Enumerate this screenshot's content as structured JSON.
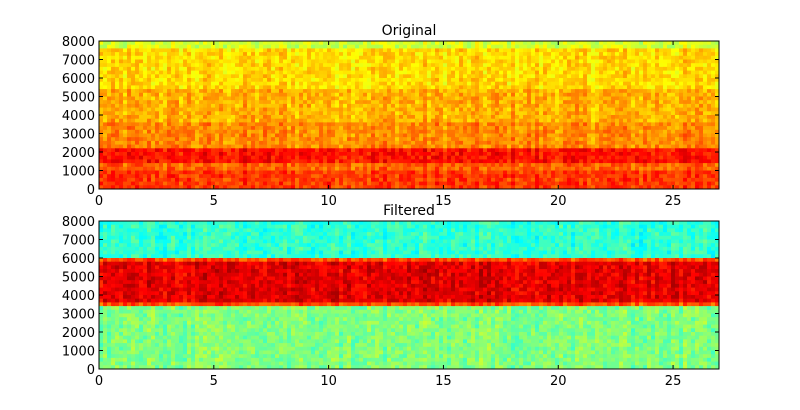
{
  "chart_data": [
    {
      "type": "heatmap",
      "title": "Original",
      "xlabel": "",
      "ylabel": "",
      "xlim": [
        0,
        27
      ],
      "ylim": [
        0,
        8000
      ],
      "xticks": [
        0,
        5,
        10,
        15,
        20,
        25
      ],
      "yticks": [
        0,
        1000,
        2000,
        3000,
        4000,
        5000,
        6000,
        7000,
        8000
      ],
      "colormap": "jet",
      "grid": false,
      "bands": [
        {
          "from": 0,
          "to": 1100,
          "level": 0.82
        },
        {
          "from": 1100,
          "to": 1500,
          "level": 0.78
        },
        {
          "from": 1500,
          "to": 2300,
          "level": 0.86
        },
        {
          "from": 2300,
          "to": 3600,
          "level": 0.74
        },
        {
          "from": 3600,
          "to": 5500,
          "level": 0.7
        },
        {
          "from": 5500,
          "to": 7700,
          "level": 0.66
        },
        {
          "from": 7700,
          "to": 8000,
          "level": 0.58
        }
      ]
    },
    {
      "type": "heatmap",
      "title": "Filtered",
      "xlabel": "",
      "ylabel": "",
      "xlim": [
        0,
        27
      ],
      "ylim": [
        0,
        8000
      ],
      "xticks": [
        0,
        5,
        10,
        15,
        20,
        25
      ],
      "yticks": [
        0,
        1000,
        2000,
        3000,
        4000,
        5000,
        6000,
        7000,
        8000
      ],
      "colormap": "jet",
      "grid": false,
      "bands": [
        {
          "from": 0,
          "to": 3500,
          "level": 0.5
        },
        {
          "from": 3500,
          "to": 3700,
          "level": 0.8
        },
        {
          "from": 3700,
          "to": 5850,
          "level": 0.9
        },
        {
          "from": 5850,
          "to": 6000,
          "level": 0.8
        },
        {
          "from": 6000,
          "to": 8000,
          "level": 0.42
        }
      ]
    }
  ]
}
